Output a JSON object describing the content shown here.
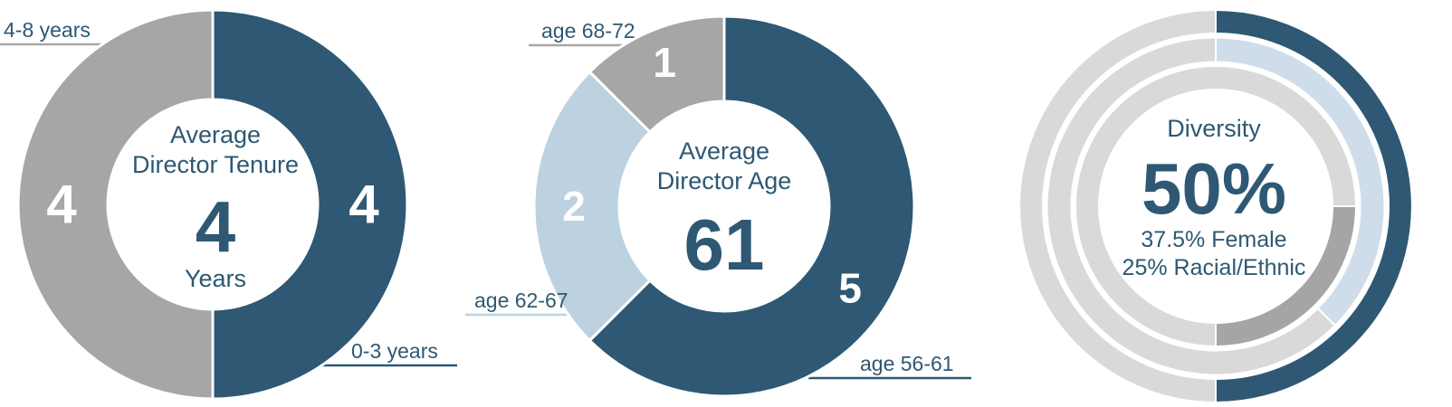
{
  "colors": {
    "navy": "#2e5873",
    "gray": "#a6a6a6",
    "light_blue": "#bcd2e0",
    "pale_blue": "#cfddeb",
    "light_gray": "#d9d9d9",
    "mid_gray": "#a5a5a5",
    "text_navy": "#2e5873",
    "segment_label_white": "#ffffff",
    "background": "#ffffff"
  },
  "chart_data": [
    {
      "type": "pie",
      "variant": "donut",
      "title": "Average Director Tenure",
      "center": {
        "line1": "Average",
        "line2": "Director Tenure",
        "value": "4",
        "sub": "Years"
      },
      "start_angle_deg": 0,
      "direction": "clockwise",
      "legend_position": "callout-leader-lines",
      "segments": [
        {
          "label": "0-3 years",
          "value": 4,
          "display": "4",
          "color": "navy"
        },
        {
          "label": "4-8 years",
          "value": 4,
          "display": "4",
          "color": "gray"
        }
      ]
    },
    {
      "type": "pie",
      "variant": "donut",
      "title": "Average Director Age",
      "center": {
        "line1": "Average",
        "line2": "Director Age",
        "value": "61"
      },
      "start_angle_deg": 0,
      "direction": "clockwise",
      "legend_position": "callout-leader-lines",
      "segments": [
        {
          "label": "age 56-61",
          "value": 5,
          "display": "5",
          "color": "navy"
        },
        {
          "label": "age 62-67",
          "value": 2,
          "display": "2",
          "color": "light_blue"
        },
        {
          "label": "age 68-72",
          "value": 1,
          "display": "1",
          "color": "gray"
        }
      ]
    },
    {
      "type": "ring",
      "variant": "concentric-donut",
      "title": "Diversity",
      "center": {
        "title": "Diversity",
        "value": "50%",
        "sub1": "37.5% Female",
        "sub2": "25% Racial/Ethnic"
      },
      "start_angle_deg": 0,
      "direction": "clockwise",
      "rings": [
        {
          "name": "diversity-total",
          "percent": 50,
          "start_percent": 0,
          "color": "navy",
          "track": "light_gray"
        },
        {
          "name": "female",
          "percent": 37.5,
          "start_percent": 0,
          "color": "pale_blue",
          "track": "light_gray"
        },
        {
          "name": "racial-ethnic",
          "percent": 25,
          "start_percent": 25,
          "color": "mid_gray",
          "track": "light_gray"
        }
      ]
    }
  ]
}
